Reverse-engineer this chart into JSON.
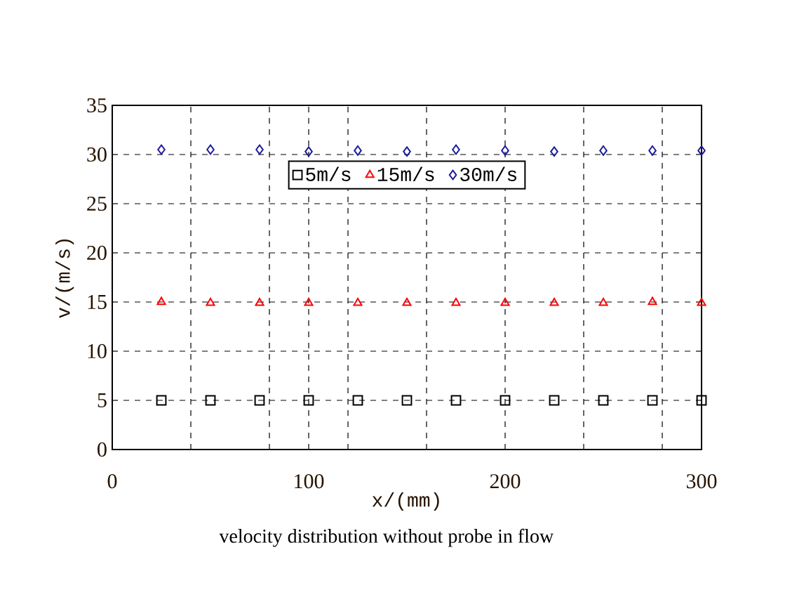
{
  "chart_data": {
    "type": "scatter",
    "xlabel": "x/(mm)",
    "ylabel": "v/(m/s)",
    "x": [
      25,
      50,
      75,
      100,
      125,
      150,
      175,
      200,
      225,
      250,
      275,
      300
    ],
    "series": [
      {
        "name": "5m/s",
        "color": "#000000",
        "marker": "square",
        "values": [
          5,
          5,
          5,
          5,
          5,
          5,
          5,
          5,
          5,
          5,
          5,
          5
        ]
      },
      {
        "name": "15m/s",
        "color": "#ff0000",
        "marker": "triangle",
        "values": [
          15,
          14.9,
          14.9,
          14.9,
          14.9,
          14.9,
          14.9,
          14.9,
          14.9,
          14.9,
          15,
          14.9
        ]
      },
      {
        "name": "30m/s",
        "color": "#1c1c9c",
        "marker": "diamond",
        "values": [
          30.5,
          30.5,
          30.5,
          30.3,
          30.4,
          30.3,
          30.5,
          30.4,
          30.3,
          30.4,
          30.4,
          30.4
        ]
      }
    ],
    "xlim": [
      0,
      300
    ],
    "ylim": [
      0,
      35
    ],
    "xticks": [
      0,
      {
        "value": 40,
        "label": null
      },
      {
        "value": 80,
        "label": null
      },
      100,
      {
        "value": 120,
        "label": null
      },
      {
        "value": 160,
        "label": null
      },
      200,
      {
        "value": 240,
        "label": null
      },
      {
        "value": 280,
        "label": null
      },
      300
    ],
    "yticks": [
      0,
      5,
      10,
      15,
      20,
      25,
      30,
      35
    ],
    "grid": true,
    "legend": "top",
    "annotations": [
      "velocity distribution without probe in flow"
    ]
  }
}
